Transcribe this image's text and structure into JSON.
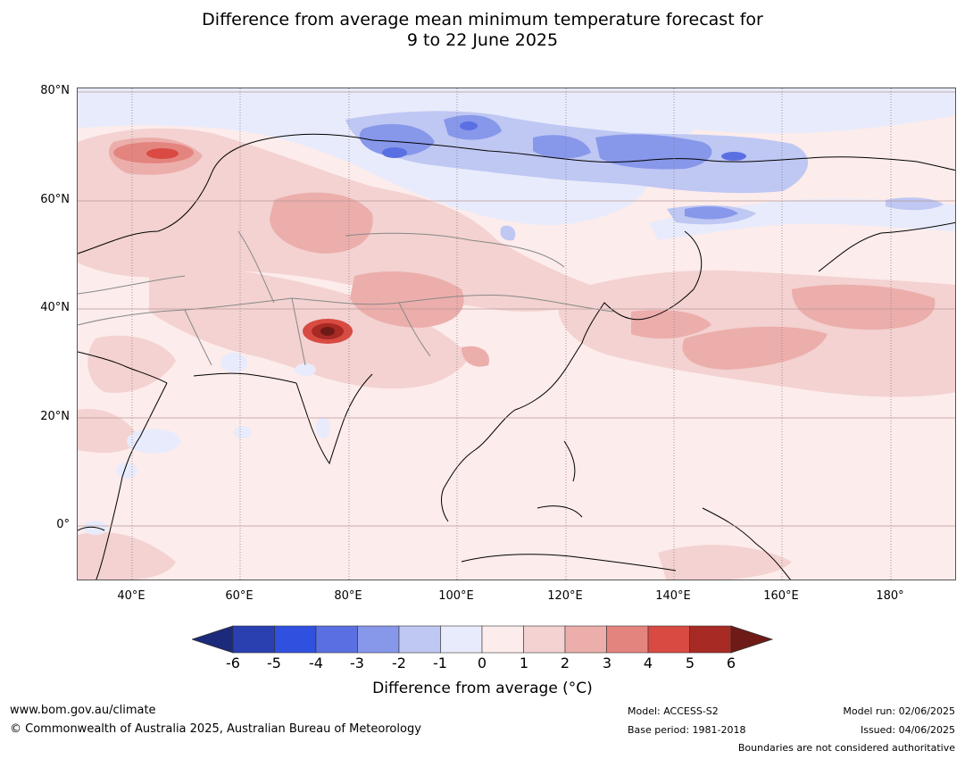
{
  "title_line1": "Difference from average mean minimum temperature forecast for",
  "title_line2": "9 to 22 June 2025",
  "lat_labels": [
    "80°N",
    "60°N",
    "40°N",
    "20°N",
    "0°"
  ],
  "lon_labels": [
    "40°E",
    "60°E",
    "80°E",
    "100°E",
    "120°E",
    "140°E",
    "160°E",
    "180°"
  ],
  "colorbar": {
    "ticks": [
      "-6",
      "-5",
      "-4",
      "-3",
      "-2",
      "-1",
      "0",
      "1",
      "2",
      "3",
      "4",
      "5",
      "6"
    ],
    "colors": [
      "#1b2a7a",
      "#2a3fb0",
      "#3050e0",
      "#5a70e2",
      "#8797ea",
      "#bfc7f3",
      "#e8ebfb",
      "#fceceb",
      "#f3d2d1",
      "#ecaeab",
      "#e4847f",
      "#d84a42",
      "#a82a24",
      "#6e1a16"
    ],
    "title": "Difference from average (°C)"
  },
  "footer": {
    "website": "www.bom.gov.au/climate",
    "copyright": "© Commonwealth of Australia 2025, Australian Bureau of Meteorology",
    "model": "Model: ACCESS-S2",
    "base_period": "Base period: 1981-2018",
    "model_run": "Model run: 02/06/2025",
    "issued": "Issued: 04/06/2025",
    "boundaries": "Boundaries are not considered authoritative"
  }
}
